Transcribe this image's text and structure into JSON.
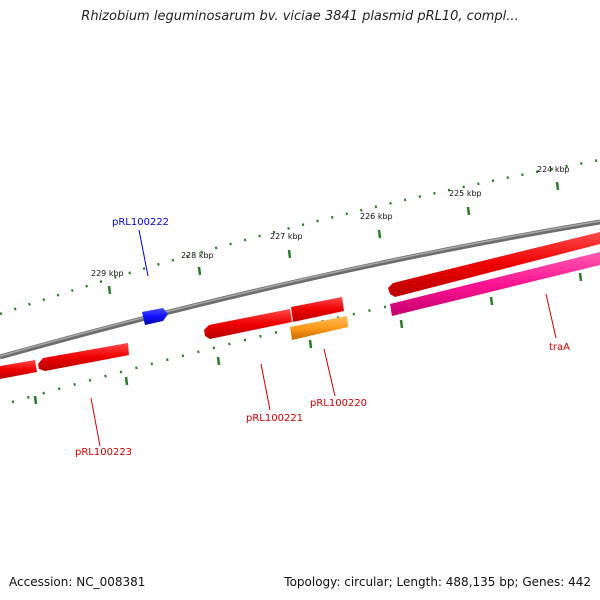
{
  "title": "Rhizobium leguminosarum bv. viciae 3841 plasmid pRL10, compl...",
  "footer": {
    "accession": "Accession: NC_008381",
    "summary": "Topology: circular; Length: 488,135 bp; Genes: 442"
  },
  "ruler": {
    "labels": [
      "229 kbp",
      "228 kbp",
      "227 kbp",
      "226 kbp",
      "225 kbp",
      "224 kbp"
    ]
  },
  "genes": [
    {
      "name": "pRL100222",
      "color": "#0000cc",
      "feature_color": "#1010ff"
    },
    {
      "name": "pRL100223",
      "color": "#cc0000",
      "feature_color": "#ff0000"
    },
    {
      "name": "pRL100221",
      "color": "#cc0000",
      "feature_color": "#ff0000"
    },
    {
      "name": "pRL100220",
      "color": "#cc0000",
      "feature_color": "#ff9a1a"
    },
    {
      "name": "traA",
      "color": "#cc0000",
      "feature_color": "#ff1493"
    }
  ],
  "colors": {
    "backbone": "#808080",
    "ticks": "#2a7a2a",
    "cds_forward": "#ff0000",
    "cds_reverse": "#ff1493"
  }
}
